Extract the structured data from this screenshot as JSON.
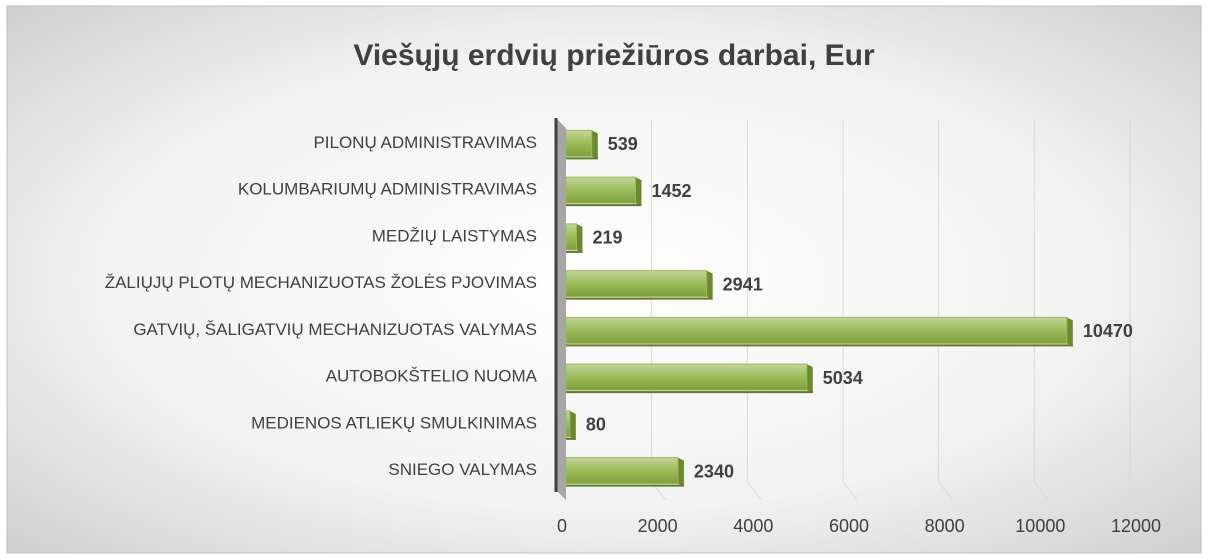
{
  "chart_data": {
    "type": "bar",
    "orientation": "horizontal",
    "title": "Viešųjų erdvių priežiūros darbai, Eur",
    "categories": [
      "PILONŲ ADMINISTRAVIMAS",
      "KOLUMBARIUMŲ ADMINISTRAVIMAS",
      "MEDŽIŲ LAISTYMAS",
      "ŽALIŲJŲ PLOTŲ MECHANIZUOTAS ŽOLĖS PJOVIMAS",
      "GATVIŲ, ŠALIGATVIŲ MECHANIZUOTAS VALYMAS",
      "AUTOBOKŠTELIO NUOMA",
      "MEDIENOS ATLIEKŲ SMULKINIMAS",
      "SNIEGO VALYMAS"
    ],
    "values": [
      539,
      1452,
      219,
      2941,
      10470,
      5034,
      80,
      2340
    ],
    "color": "#9bbb59",
    "xlim": [
      0,
      12000
    ],
    "xticks": [
      0,
      2000,
      4000,
      6000,
      8000,
      10000,
      12000
    ],
    "grid": true
  }
}
